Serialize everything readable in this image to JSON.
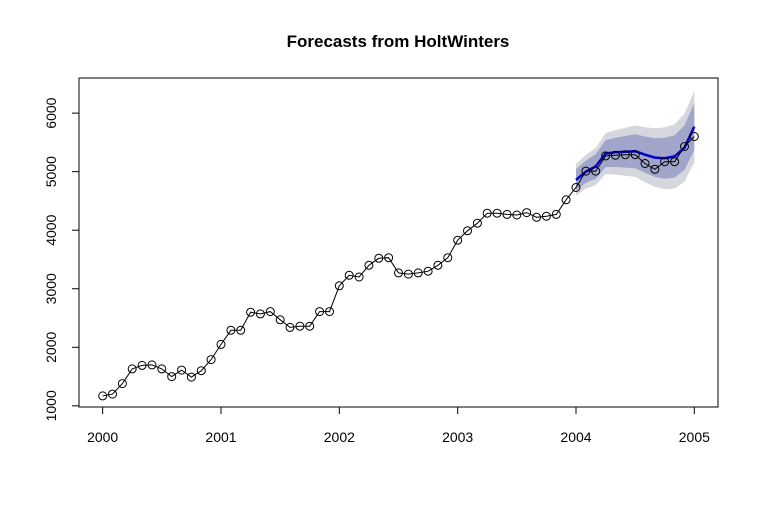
{
  "chart_data": {
    "type": "line",
    "title": "Forecasts from HoltWinters",
    "xlabel": "",
    "ylabel": "",
    "xlim": [
      1999.8,
      2005.2
    ],
    "ylim": [
      980,
      6600
    ],
    "x_ticks": [
      2000,
      2001,
      2002,
      2003,
      2004,
      2005
    ],
    "x_tick_labels": [
      "2000",
      "2001",
      "2002",
      "2003",
      "2004",
      "2005"
    ],
    "y_ticks": [
      1000,
      2000,
      3000,
      4000,
      5000,
      6000
    ],
    "y_tick_labels": [
      "1000",
      "2000",
      "3000",
      "4000",
      "5000",
      "6000"
    ],
    "grid": false,
    "observed": {
      "start": 2000,
      "step": 0.0833333,
      "values": [
        1170,
        1200,
        1380,
        1630,
        1690,
        1700,
        1630,
        1500,
        1610,
        1490,
        1600,
        1790,
        2050,
        2290,
        2290,
        2600,
        2570,
        2610,
        2470,
        2340,
        2360,
        2360,
        2610,
        2610,
        3050,
        3230,
        3200,
        3400,
        3520,
        3530,
        3270,
        3250,
        3270,
        3300,
        3400,
        3530,
        3830,
        3990,
        4120,
        4290,
        4290,
        4270,
        4260,
        4300,
        4220,
        4240,
        4270,
        4520,
        4730,
        5010,
        5010,
        5270,
        5280,
        5290,
        5290,
        5140,
        5040,
        5170,
        5170,
        5430,
        5600
      ]
    },
    "forecast": {
      "start": 2004,
      "step": 0.0833333,
      "mean": [
        4860,
        5000,
        5090,
        5310,
        5330,
        5340,
        5350,
        5290,
        5240,
        5230,
        5260,
        5410,
        5770
      ],
      "lo80": [
        4680,
        4810,
        4880,
        5080,
        5080,
        5070,
        5060,
        4980,
        4910,
        4880,
        4900,
        5030,
        5370
      ],
      "hi80": [
        5040,
        5190,
        5300,
        5540,
        5580,
        5610,
        5640,
        5600,
        5570,
        5580,
        5620,
        5790,
        6170
      ],
      "lo95": [
        4590,
        4710,
        4770,
        4960,
        4950,
        4930,
        4910,
        4820,
        4740,
        4700,
        4710,
        4830,
        5160
      ],
      "hi95": [
        5130,
        5290,
        5410,
        5660,
        5710,
        5750,
        5790,
        5760,
        5740,
        5760,
        5810,
        5990,
        6380
      ]
    },
    "colors": {
      "observed": "#000000",
      "forecast_line": "#0000CD",
      "band80": "#A0A5C9",
      "band95": "#D6D6DE"
    }
  }
}
